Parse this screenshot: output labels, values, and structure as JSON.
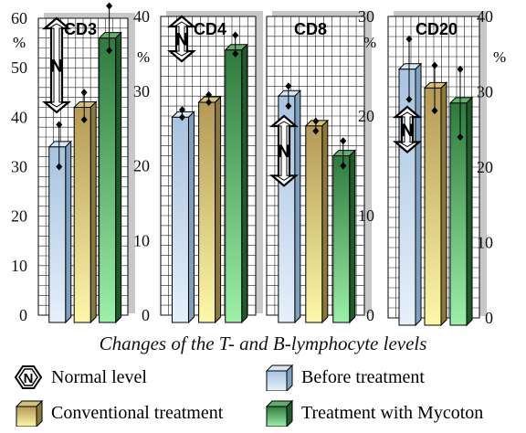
{
  "chart_data": {
    "type": "bar",
    "caption": "Changes of the T- and B-lymphocyte levels",
    "unit_label": "%",
    "normal_label": "N",
    "series": [
      {
        "name": "Before treatment",
        "color_top": "#a8c4e0",
        "color_bottom": "#e6f0fa"
      },
      {
        "name": "Conventional treatment",
        "color_top": "#b49a55",
        "color_bottom": "#fdf8a8"
      },
      {
        "name": "Treatment with Mycoton",
        "color_top": "#2e7a3e",
        "color_bottom": "#9cf0a8"
      }
    ],
    "panels": [
      {
        "title": "CD3",
        "ylim": [
          0,
          60
        ],
        "yticks": [
          "0",
          "10",
          "20",
          "30",
          "40",
          "50",
          "60"
        ],
        "values": [
          34,
          42,
          56
        ],
        "errors": [
          [
            30,
            38.5
          ],
          [
            39.5,
            45
          ],
          [
            53.5,
            62.5
          ]
        ],
        "normal_range": [
          41,
          60
        ]
      },
      {
        "title": "CD4",
        "ylim": [
          0,
          40
        ],
        "yticks": [
          "0",
          "10",
          "20",
          "30",
          "40"
        ],
        "values": [
          26.5,
          28.5,
          35.5
        ],
        "errors": [
          [
            26.5,
            27.5
          ],
          [
            28.5,
            29.5
          ],
          [
            35,
            37.5
          ]
        ],
        "normal_range": [
          34,
          40
        ]
      },
      {
        "title": "CD8",
        "ylim": [
          0,
          30
        ],
        "yticks": [
          "0",
          "10",
          "20",
          "30"
        ],
        "values": [
          22,
          19,
          16
        ],
        "errors": [
          [
            21,
            23
          ],
          [
            18.5,
            19.5
          ],
          [
            15,
            17.5
          ]
        ],
        "normal_range": [
          13,
          20
        ]
      },
      {
        "title": "CD20",
        "ylim": [
          0,
          40
        ],
        "yticks": [
          "0",
          "10",
          "20",
          "30",
          "40"
        ],
        "values": [
          33,
          30.5,
          28.5
        ],
        "errors": [
          [
            29,
            37
          ],
          [
            27.5,
            33.5
          ],
          [
            24,
            33
          ]
        ],
        "normal_range": [
          22,
          28
        ]
      }
    ]
  },
  "legend": {
    "normal": "Normal level",
    "before": "Before treatment",
    "conventional": "Conventional treatment",
    "mycoton": "Treatment with Mycoton"
  }
}
